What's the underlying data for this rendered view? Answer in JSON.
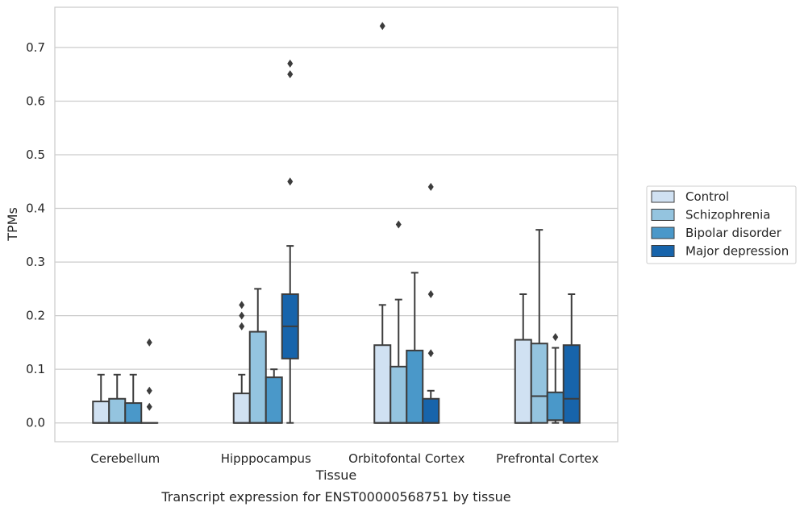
{
  "chart_data": {
    "type": "box",
    "title": "",
    "caption": "Transcript expression for ENST00000568751 by tissue",
    "xlabel": "Tissue",
    "ylabel": "TPMs",
    "ylim": [
      -0.035,
      0.775
    ],
    "yticks": [
      0.0,
      0.1,
      0.2,
      0.3,
      0.4,
      0.5,
      0.6,
      0.7
    ],
    "ytick_labels": [
      "0.0",
      "0.1",
      "0.2",
      "0.3",
      "0.4",
      "0.5",
      "0.6",
      "0.7"
    ],
    "grid": "horizontal",
    "legend_position": "outside-right",
    "categories": [
      "Cerebellum",
      "Hipppocampus",
      "Orbitofontal Cortex",
      "Prefrontal Cortex"
    ],
    "series": [
      {
        "name": "Control",
        "color": "#d0e1f2",
        "boxes": [
          {
            "whislo": 0.0,
            "q1": 0.0,
            "med": 0.0,
            "q3": 0.04,
            "whishi": 0.09,
            "fliers": []
          },
          {
            "whislo": 0.0,
            "q1": 0.0,
            "med": 0.0,
            "q3": 0.055,
            "whishi": 0.09,
            "fliers": [
              0.18,
              0.2,
              0.22
            ]
          },
          {
            "whislo": 0.0,
            "q1": 0.0,
            "med": 0.0,
            "q3": 0.145,
            "whishi": 0.22,
            "fliers": [
              0.74
            ]
          },
          {
            "whislo": 0.0,
            "q1": 0.0,
            "med": 0.0,
            "q3": 0.155,
            "whishi": 0.24,
            "fliers": []
          }
        ]
      },
      {
        "name": "Schizophrenia",
        "color": "#94c4df",
        "boxes": [
          {
            "whislo": 0.0,
            "q1": 0.0,
            "med": 0.0,
            "q3": 0.045,
            "whishi": 0.09,
            "fliers": []
          },
          {
            "whislo": 0.0,
            "q1": 0.0,
            "med": 0.0,
            "q3": 0.17,
            "whishi": 0.25,
            "fliers": []
          },
          {
            "whislo": 0.0,
            "q1": 0.0,
            "med": 0.0,
            "q3": 0.105,
            "whishi": 0.23,
            "fliers": [
              0.37
            ]
          },
          {
            "whislo": 0.0,
            "q1": 0.0,
            "med": 0.05,
            "q3": 0.148,
            "whishi": 0.36,
            "fliers": []
          }
        ]
      },
      {
        "name": "Bipolar disorder",
        "color": "#4a98c9",
        "boxes": [
          {
            "whislo": 0.0,
            "q1": 0.0,
            "med": 0.0,
            "q3": 0.037,
            "whishi": 0.09,
            "fliers": []
          },
          {
            "whislo": 0.0,
            "q1": 0.0,
            "med": 0.0,
            "q3": 0.085,
            "whishi": 0.1,
            "fliers": []
          },
          {
            "whislo": 0.0,
            "q1": 0.0,
            "med": 0.0,
            "q3": 0.135,
            "whishi": 0.28,
            "fliers": []
          },
          {
            "whislo": 0.0,
            "q1": 0.005,
            "med": 0.005,
            "q3": 0.057,
            "whishi": 0.14,
            "fliers": [
              0.16
            ]
          }
        ]
      },
      {
        "name": "Major depression",
        "color": "#1764ab",
        "boxes": [
          {
            "whislo": 0.0,
            "q1": 0.0,
            "med": 0.0,
            "q3": 0.0,
            "whishi": 0.0,
            "fliers": [
              0.03,
              0.06,
              0.15
            ]
          },
          {
            "whislo": 0.0,
            "q1": 0.12,
            "med": 0.18,
            "q3": 0.24,
            "whishi": 0.33,
            "fliers": [
              0.45,
              0.65,
              0.67
            ]
          },
          {
            "whislo": 0.0,
            "q1": 0.0,
            "med": 0.0,
            "q3": 0.045,
            "whishi": 0.06,
            "fliers": [
              0.13,
              0.24,
              0.44
            ]
          },
          {
            "whislo": 0.0,
            "q1": 0.0,
            "med": 0.045,
            "q3": 0.145,
            "whishi": 0.24,
            "fliers": []
          }
        ]
      }
    ]
  }
}
